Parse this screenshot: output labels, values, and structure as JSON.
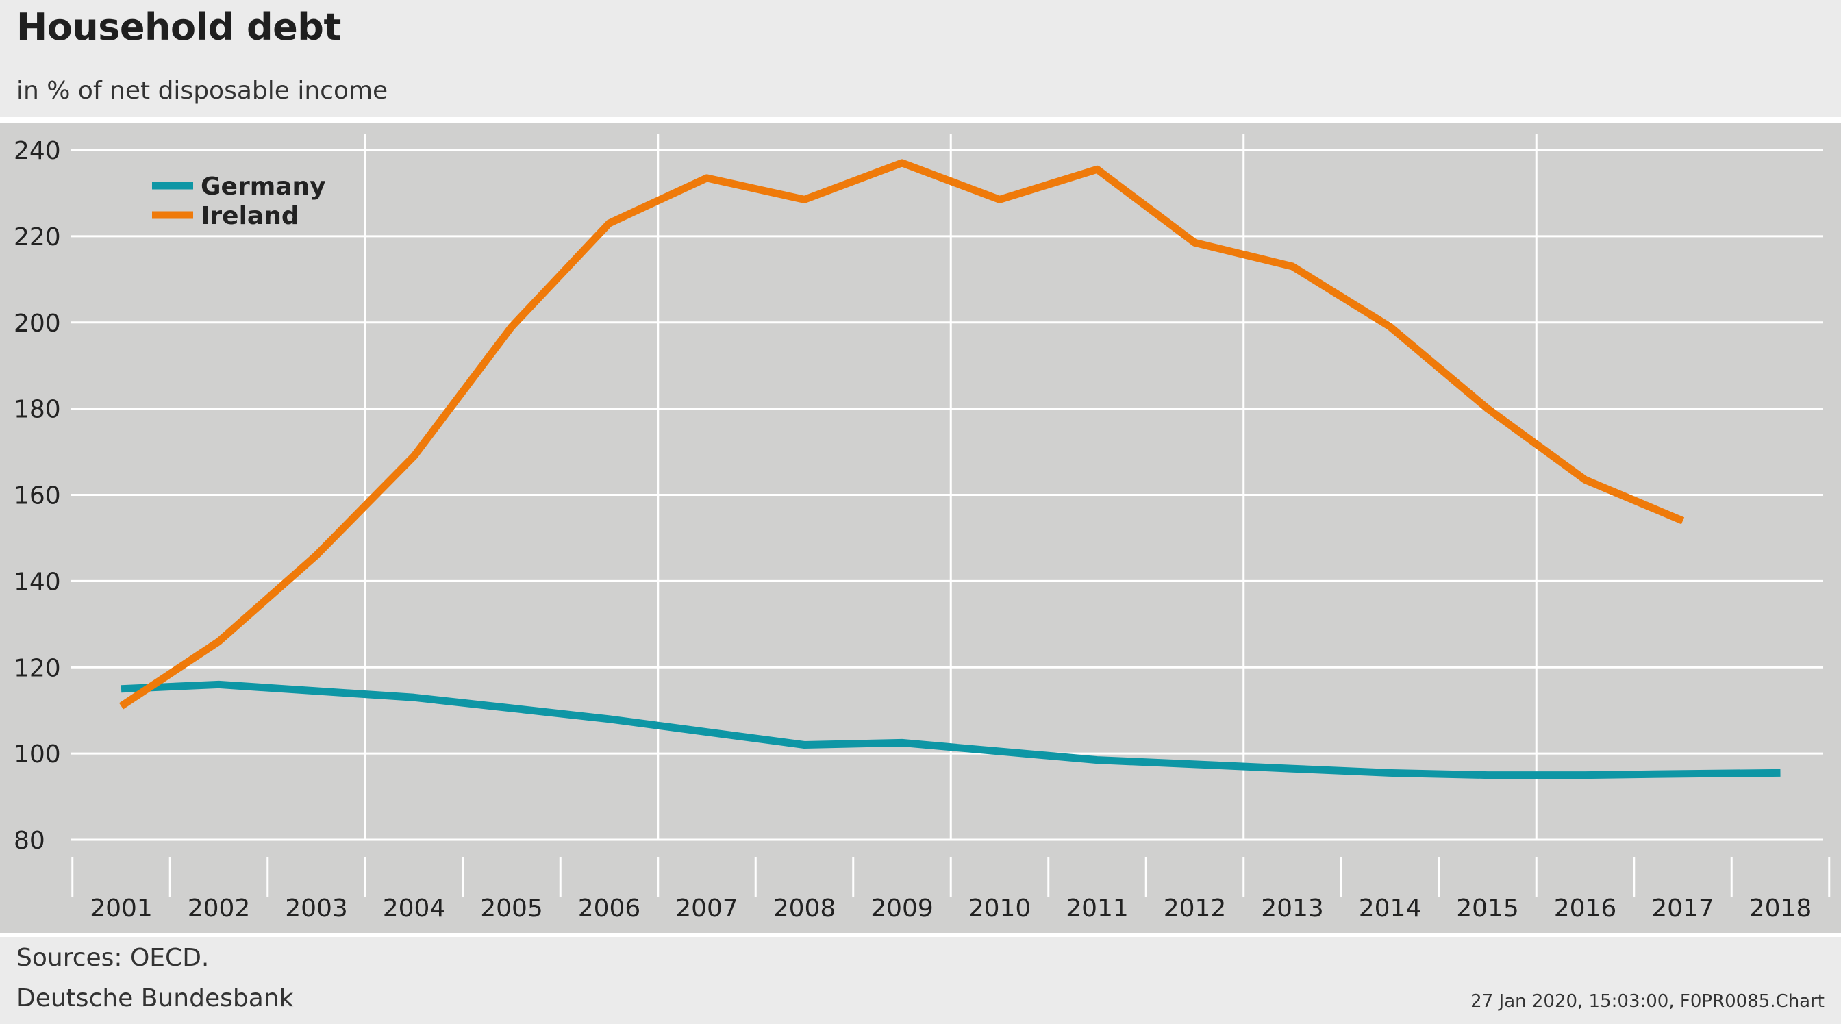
{
  "header": {
    "title": "Household debt",
    "subtitle": "in % of net disposable income"
  },
  "footer": {
    "source": "Sources: OECD.",
    "publisher": "Deutsche Bundesbank",
    "stamp": "27 Jan 2020, 15:03:00, F0PR0085.Chart"
  },
  "colors": {
    "background": "#ebebeb",
    "plot_background": "#d0d0cf",
    "grid": "#ffffff",
    "germany": "#0e96a5",
    "ireland": "#ef7a0a"
  },
  "chart_data": {
    "type": "line",
    "title": "Household debt",
    "subtitle": "in % of net disposable income",
    "xlabel": "",
    "ylabel": "",
    "x": [
      "2001",
      "2002",
      "2003",
      "2004",
      "2005",
      "2006",
      "2007",
      "2008",
      "2009",
      "2010",
      "2011",
      "2012",
      "2013",
      "2014",
      "2015",
      "2016",
      "2017",
      "2018"
    ],
    "ylim": [
      80,
      240
    ],
    "yticks": [
      80,
      100,
      120,
      140,
      160,
      180,
      200,
      220,
      240
    ],
    "grid": true,
    "legend_position": "top-left",
    "series": [
      {
        "name": "Germany",
        "color": "#0e96a5",
        "values": [
          115,
          116,
          114.5,
          113,
          110.5,
          108,
          105,
          102,
          102.5,
          100.5,
          98.5,
          97.5,
          96.5,
          95.5,
          95,
          95,
          95.3,
          95.5
        ]
      },
      {
        "name": "Ireland",
        "color": "#ef7a0a",
        "values": [
          111,
          126,
          146,
          169,
          199,
          223,
          233.5,
          228.5,
          237,
          228.5,
          235.5,
          218.5,
          213,
          199,
          180,
          163.5,
          154,
          null
        ]
      }
    ]
  }
}
